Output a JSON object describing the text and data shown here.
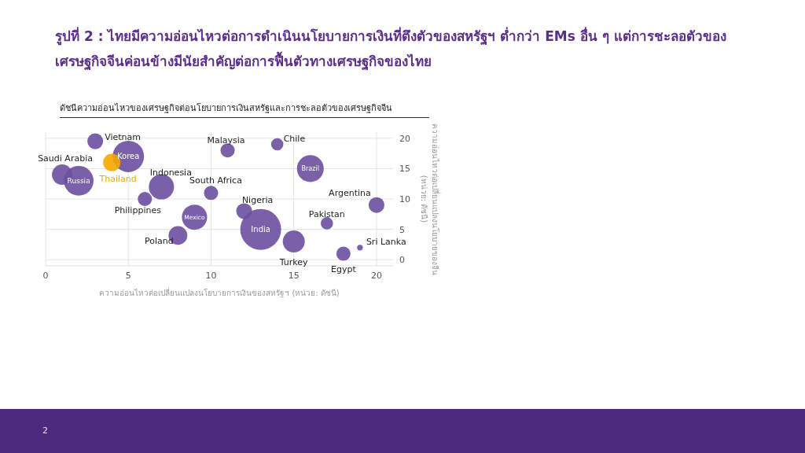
{
  "chart_data": {
    "type": "bubble",
    "title": "รูปที่ 2 : ไทยมีความอ่อนไหวต่อการดำเนินนโยบายการเงินที่ตึงตัวของสหรัฐฯ ต่ำกว่า EMs อื่น ๆ แต่การชะลอตัวของเศรษฐกิจจีนค่อนข้างมีนัยสำคัญต่อการฟื้นตัวทางเศรษฐกิจของไทย",
    "subtitle": "ดัชนีความอ่อนไหวของเศรษฐกิจต่อนโยบายการเงินสหรัฐและการชะลอตัวของเศรษฐกิจจีน",
    "xlabel": "ความอ่อนไหวต่อเปลี่ยนแปลงนโยบายการเงินของสหรัฐฯ (หน่วย: ดัชนี)",
    "ylabel": "ความอ่อนไหวต่อเปลี่ยนแปลงนโยบายของจีน (หน่วย: ดัชนี)",
    "annotations": [
      "2"
    ],
    "xlim": [
      0,
      21
    ],
    "xticks": [
      0,
      5,
      10,
      15,
      20
    ],
    "ylim": [
      -1,
      21
    ],
    "yticks": [
      0,
      5,
      10,
      15,
      20
    ],
    "grid": true,
    "legend": false,
    "series": [
      {
        "name": "Vietnam",
        "color": "#6b4fa0",
        "x": [
          3
        ],
        "values": [
          19.5
        ],
        "sizes": [
          0.15
        ]
      },
      {
        "name": "Korea",
        "color": "#6b4fa0",
        "x": [
          5
        ],
        "values": [
          17
        ],
        "sizes": [
          0.59
        ]
      },
      {
        "name": "Thailand",
        "color": "#f5a800",
        "x": [
          4
        ],
        "values": [
          16
        ],
        "sizes": [
          0.18
        ]
      },
      {
        "name": "Saudi Arabia",
        "color": "#6b4fa0",
        "x": [
          1
        ],
        "values": [
          14
        ],
        "sizes": [
          0.25
        ]
      },
      {
        "name": "Russia",
        "color": "#6b4fa0",
        "x": [
          2
        ],
        "values": [
          13
        ],
        "sizes": [
          0.53
        ]
      },
      {
        "name": "Indonesia",
        "color": "#6b4fa0",
        "x": [
          7
        ],
        "values": [
          12
        ],
        "sizes": [
          0.38
        ]
      },
      {
        "name": "Philippines",
        "color": "#6b4fa0",
        "x": [
          6
        ],
        "values": [
          10
        ],
        "sizes": [
          0.12
        ]
      },
      {
        "name": "South Africa",
        "color": "#6b4fa0",
        "x": [
          10
        ],
        "values": [
          11
        ],
        "sizes": [
          0.12
        ]
      },
      {
        "name": "Malaysia",
        "color": "#6b4fa0",
        "x": [
          11
        ],
        "values": [
          18
        ],
        "sizes": [
          0.12
        ]
      },
      {
        "name": "Chile",
        "color": "#6b4fa0",
        "x": [
          14
        ],
        "values": [
          19
        ],
        "sizes": [
          0.09
        ]
      },
      {
        "name": "Brazil",
        "color": "#6b4fa0",
        "x": [
          16
        ],
        "values": [
          15
        ],
        "sizes": [
          0.43
        ]
      },
      {
        "name": "Argentina",
        "color": "#6b4fa0",
        "x": [
          20
        ],
        "values": [
          9
        ],
        "sizes": [
          0.15
        ]
      },
      {
        "name": "Nigeria",
        "color": "#6b4fa0",
        "x": [
          12
        ],
        "values": [
          8
        ],
        "sizes": [
          0.15
        ]
      },
      {
        "name": "Mexico",
        "color": "#6b4fa0",
        "x": [
          9
        ],
        "values": [
          7
        ],
        "sizes": [
          0.38
        ]
      },
      {
        "name": "India",
        "color": "#6b4fa0",
        "x": [
          13
        ],
        "values": [
          5
        ],
        "sizes": [
          1
        ]
      },
      {
        "name": "Pakistan",
        "color": "#6b4fa0",
        "x": [
          17
        ],
        "values": [
          6
        ],
        "sizes": [
          0.09
        ]
      },
      {
        "name": "Poland",
        "color": "#6b4fa0",
        "x": [
          8
        ],
        "values": [
          4
        ],
        "sizes": [
          0.21
        ]
      },
      {
        "name": "Turkey",
        "color": "#6b4fa0",
        "x": [
          15
        ],
        "values": [
          3
        ],
        "sizes": [
          0.29
        ]
      },
      {
        "name": "Sri Lanka",
        "color": "#6b4fa0",
        "x": [
          19
        ],
        "values": [
          2
        ],
        "sizes": [
          0.02
        ]
      },
      {
        "name": "Egypt",
        "color": "#6b4fa0",
        "x": [
          18
        ],
        "values": [
          1
        ],
        "sizes": [
          0.12
        ]
      }
    ]
  }
}
